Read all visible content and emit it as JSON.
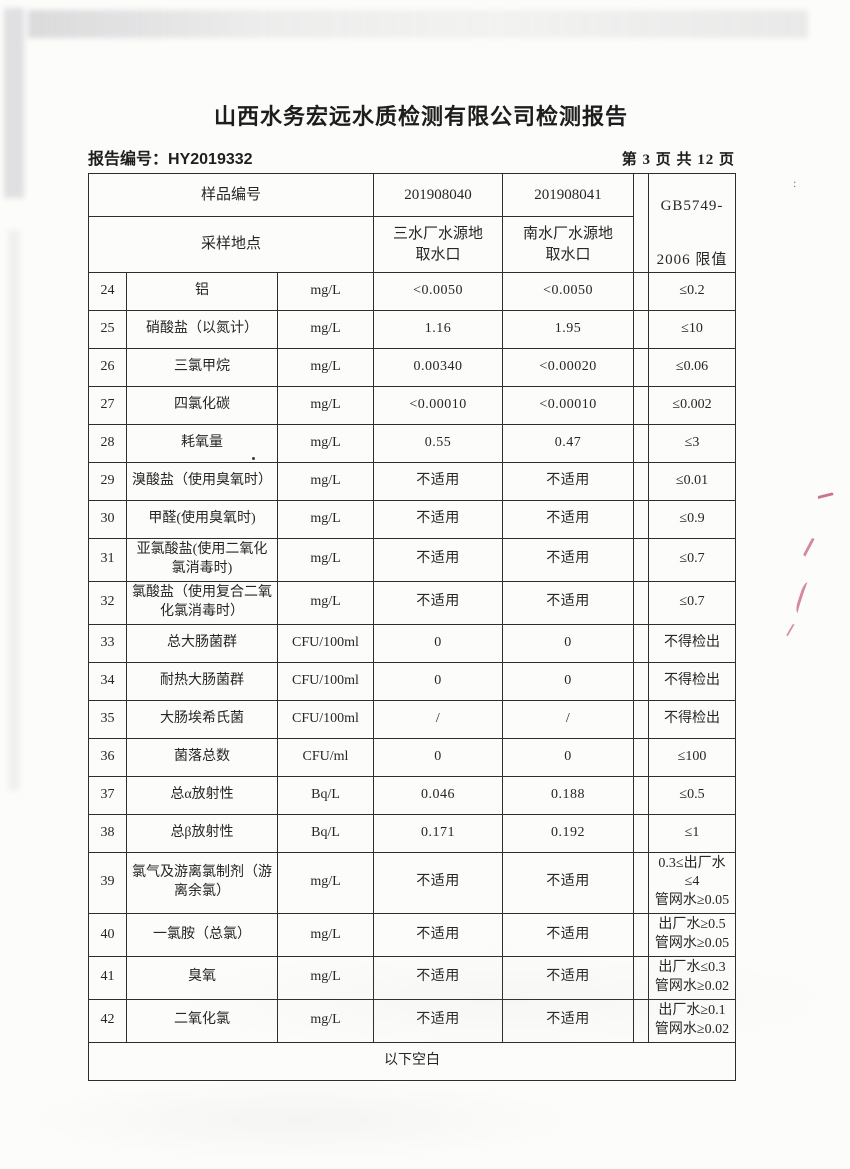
{
  "report": {
    "title": "山西水务宏远水质检测有限公司检测报告",
    "report_no_label": "报告编号：",
    "report_no": "HY2019332",
    "page_info": "第 3 页 共 12 页"
  },
  "table": {
    "sample_row_label": "样品编号",
    "sample_ids": [
      "201908040",
      "201908041"
    ],
    "location_row_label": "采样地点",
    "locations": [
      "三水厂水源地\n取水口",
      "南水厂水源地\n取水口"
    ],
    "limit_header": {
      "line1": "GB5749-",
      "line2": "2006 限值"
    },
    "rows": [
      {
        "no": "24",
        "name": "铝",
        "unit": "mg/L",
        "v1": "<0.0050",
        "v2": "<0.0050",
        "limit": "≤0.2"
      },
      {
        "no": "25",
        "name": "硝酸盐（以氮计）",
        "unit": "mg/L",
        "v1": "1.16",
        "v2": "1.95",
        "limit": "≤10"
      },
      {
        "no": "26",
        "name": "三氯甲烷",
        "unit": "mg/L",
        "v1": "0.00340",
        "v2": "<0.00020",
        "limit": "≤0.06"
      },
      {
        "no": "27",
        "name": "四氯化碳",
        "unit": "mg/L",
        "v1": "<0.00010",
        "v2": "<0.00010",
        "limit": "≤0.002"
      },
      {
        "no": "28",
        "name": "耗氧量",
        "unit": "mg/L",
        "v1": "0.55",
        "v2": "0.47",
        "limit": "≤3"
      },
      {
        "no": "29",
        "name": "溴酸盐（使用臭氧时）",
        "unit": "mg/L",
        "v1": "不适用",
        "v2": "不适用",
        "limit": "≤0.01"
      },
      {
        "no": "30",
        "name": "甲醛(使用臭氧时)",
        "unit": "mg/L",
        "v1": "不适用",
        "v2": "不适用",
        "limit": "≤0.9"
      },
      {
        "no": "31",
        "name": "亚氯酸盐(使用二氧化氯消毒时)",
        "unit": "mg/L",
        "v1": "不适用",
        "v2": "不适用",
        "limit": "≤0.7"
      },
      {
        "no": "32",
        "name": "氯酸盐（使用复合二氧化氯消毒时）",
        "unit": "mg/L",
        "v1": "不适用",
        "v2": "不适用",
        "limit": "≤0.7"
      },
      {
        "no": "33",
        "name": "总大肠菌群",
        "unit": "CFU/100ml",
        "v1": "0",
        "v2": "0",
        "limit": "不得检出"
      },
      {
        "no": "34",
        "name": "耐热大肠菌群",
        "unit": "CFU/100ml",
        "v1": "0",
        "v2": "0",
        "limit": "不得检出"
      },
      {
        "no": "35",
        "name": "大肠埃希氏菌",
        "unit": "CFU/100ml",
        "v1": "/",
        "v2": "/",
        "limit": "不得检出"
      },
      {
        "no": "36",
        "name": "菌落总数",
        "unit": "CFU/ml",
        "v1": "0",
        "v2": "0",
        "limit": "≤100"
      },
      {
        "no": "37",
        "name": "总α放射性",
        "unit": "Bq/L",
        "v1": "0.046",
        "v2": "0.188",
        "limit": "≤0.5"
      },
      {
        "no": "38",
        "name": "总β放射性",
        "unit": "Bq/L",
        "v1": "0.171",
        "v2": "0.192",
        "limit": "≤1"
      },
      {
        "no": "39",
        "name": "氯气及游离氯制剂（游离余氯）",
        "unit": "mg/L",
        "v1": "不适用",
        "v2": "不适用",
        "limit": "0.3≤出厂水≤4\n管网水≥0.05"
      },
      {
        "no": "40",
        "name": "一氯胺（总氯）",
        "unit": "mg/L",
        "v1": "不适用",
        "v2": "不适用",
        "limit": "出厂水≥0.5\n管网水≥0.05"
      },
      {
        "no": "41",
        "name": "臭氧",
        "unit": "mg/L",
        "v1": "不适用",
        "v2": "不适用",
        "limit": "出厂水≤0.3\n管网水≥0.02"
      },
      {
        "no": "42",
        "name": "二氧化氯",
        "unit": "mg/L",
        "v1": "不适用",
        "v2": "不适用",
        "limit": "出厂水≥0.1\n管网水≥0.02"
      }
    ],
    "footer_note": "以下空白"
  },
  "artifacts": {
    "colon_mark": ":"
  },
  "colors": {
    "ink": "#262626",
    "border": "#2e2e2e",
    "red_mark": "#b5294e",
    "paper": "#fcfcfa"
  }
}
